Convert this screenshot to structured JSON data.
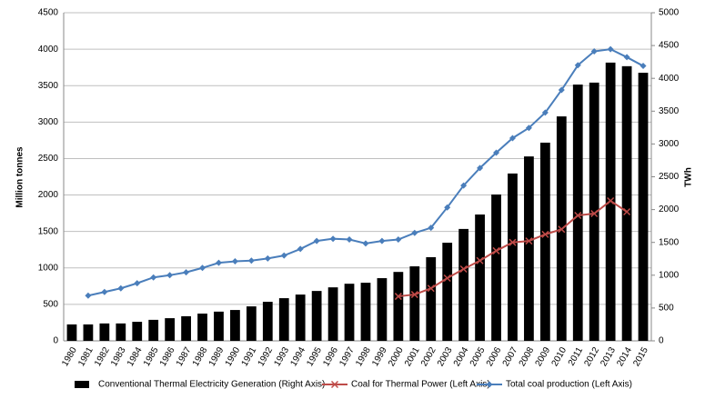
{
  "chart_data": {
    "type": "bar-line",
    "y_label": "Million  tonnes",
    "y2_label": "TWh",
    "categories": [
      "1980",
      "1981",
      "1982",
      "1983",
      "1984",
      "1985",
      "1986",
      "1987",
      "1988",
      "1989",
      "1990",
      "1991",
      "1992",
      "1993",
      "1994",
      "1995",
      "1996",
      "1997",
      "1998",
      "1999",
      "2000",
      "2001",
      "2002",
      "2003",
      "2004",
      "2005",
      "2006",
      "2007",
      "2008",
      "2009",
      "2010",
      "2011",
      "2012",
      "2013",
      "2014",
      "2015"
    ],
    "series": [
      {
        "name": "Conventional Thermal Electricity Generation (Right Axis)",
        "type": "bar",
        "axis": "y2",
        "color": "#000000",
        "values": [
          250,
          250,
          265,
          265,
          290,
          320,
          345,
          375,
          415,
          445,
          470,
          525,
          595,
          650,
          705,
          760,
          815,
          870,
          885,
          955,
          1050,
          1135,
          1275,
          1495,
          1705,
          1925,
          2230,
          2550,
          2810,
          3020,
          3420,
          3905,
          3935,
          4240,
          4185,
          4085
        ]
      },
      {
        "name": "Coal for Thermal Power (Left Axis)",
        "type": "line",
        "marker": "x",
        "color": "#be4b48",
        "values": [
          null,
          null,
          null,
          null,
          null,
          null,
          null,
          null,
          null,
          null,
          null,
          null,
          null,
          null,
          null,
          null,
          null,
          null,
          null,
          null,
          610,
          635,
          720,
          860,
          985,
          1100,
          1235,
          1350,
          1370,
          1460,
          1530,
          1720,
          1745,
          1920,
          1770,
          null
        ]
      },
      {
        "name": "Total coal production (Left Axis)",
        "type": "line",
        "marker": "diamond",
        "color": "#4a7ebb",
        "values": [
          null,
          620,
          670,
          720,
          790,
          870,
          900,
          940,
          1000,
          1070,
          1090,
          1100,
          1130,
          1170,
          1260,
          1370,
          1400,
          1390,
          1335,
          1370,
          1390,
          1480,
          1550,
          1830,
          2130,
          2370,
          2580,
          2780,
          2920,
          3130,
          3440,
          3780,
          3970,
          4000,
          3890,
          3770
        ]
      }
    ],
    "ylim": [
      0,
      4500
    ],
    "yticks": [
      0,
      500,
      1000,
      1500,
      2000,
      2500,
      3000,
      3500,
      4000,
      4500
    ],
    "y2lim": [
      0,
      5000
    ],
    "y2ticks": [
      0,
      500,
      1000,
      1500,
      2000,
      2500,
      3000,
      3500,
      4000,
      4500,
      5000
    ],
    "grid": true,
    "legend": "bottom"
  }
}
